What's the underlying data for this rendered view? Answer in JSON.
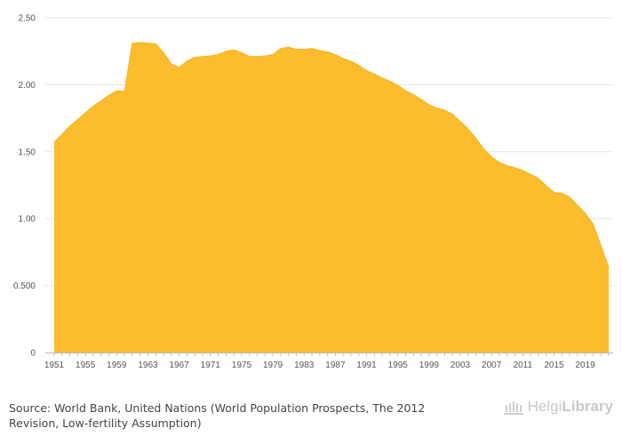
{
  "chart_data": {
    "type": "area",
    "x": [
      1951,
      1952,
      1953,
      1954,
      1955,
      1956,
      1957,
      1958,
      1959,
      1960,
      1961,
      1962,
      1963,
      1964,
      1965,
      1966,
      1967,
      1968,
      1969,
      1970,
      1971,
      1972,
      1973,
      1974,
      1975,
      1976,
      1977,
      1978,
      1979,
      1980,
      1981,
      1982,
      1983,
      1984,
      1985,
      1986,
      1987,
      1988,
      1989,
      1990,
      1991,
      1992,
      1993,
      1994,
      1995,
      1996,
      1997,
      1998,
      1999,
      2000,
      2001,
      2002,
      2003,
      2004,
      2005,
      2006,
      2007,
      2008,
      2009,
      2010,
      2011,
      2012,
      2013,
      2014,
      2015,
      2016,
      2017,
      2018,
      2019,
      2020,
      2021,
      2022
    ],
    "values": [
      1.57,
      1.63,
      1.69,
      1.74,
      1.79,
      1.84,
      1.88,
      1.92,
      1.955,
      1.95,
      2.31,
      2.315,
      2.31,
      2.305,
      2.24,
      2.155,
      2.13,
      2.175,
      2.205,
      2.21,
      2.215,
      2.225,
      2.25,
      2.26,
      2.24,
      2.21,
      2.21,
      2.215,
      2.225,
      2.27,
      2.28,
      2.265,
      2.265,
      2.27,
      2.255,
      2.245,
      2.225,
      2.195,
      2.175,
      2.145,
      2.105,
      2.08,
      2.05,
      2.025,
      1.995,
      1.955,
      1.925,
      1.89,
      1.85,
      1.825,
      1.81,
      1.78,
      1.725,
      1.67,
      1.6,
      1.52,
      1.46,
      1.42,
      1.395,
      1.38,
      1.36,
      1.33,
      1.3,
      1.245,
      1.195,
      1.19,
      1.16,
      1.1,
      1.04,
      0.96,
      0.8,
      0.635
    ],
    "x_tick_labels": [
      "1951",
      "1955",
      "1959",
      "1963",
      "1967",
      "1971",
      "1975",
      "1979",
      "1983",
      "1987",
      "1991",
      "1995",
      "1999",
      "2003",
      "2007",
      "2011",
      "2015",
      "2019"
    ],
    "y_ticks": [
      0,
      0.5,
      1.0,
      1.5,
      2.0,
      2.5
    ],
    "y_tick_labels": [
      "0",
      "0.500",
      "1.00",
      "1.50",
      "2.00",
      "2.50"
    ],
    "ylim": [
      0,
      2.5
    ],
    "grid": true,
    "color": "#fbbc2d",
    "title": "",
    "xlabel": "",
    "ylabel": ""
  },
  "footer": {
    "source_label": "Source:",
    "source_text": "World Bank, United Nations (World Population Prospects, The 2012 Revision, Low-fertility Assumption)",
    "brand_light": "Helgi",
    "brand_bold": "Library"
  }
}
